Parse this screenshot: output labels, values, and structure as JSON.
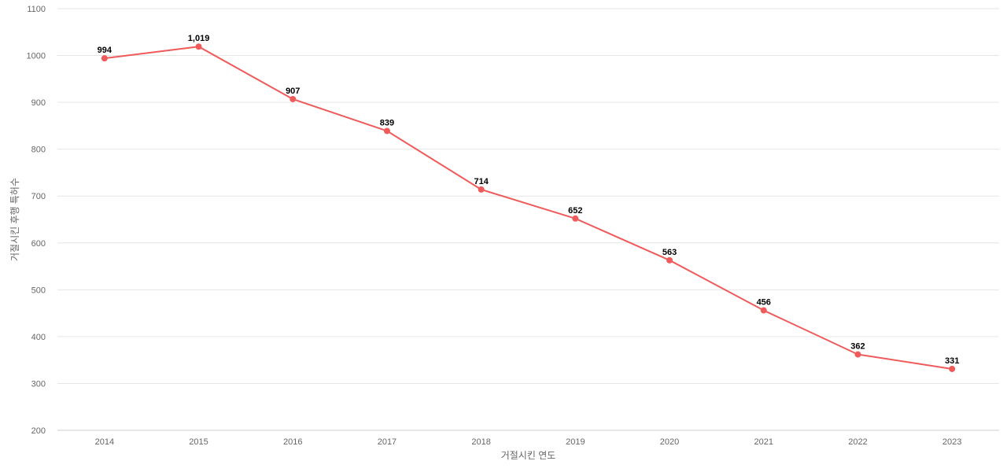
{
  "chart_data": {
    "type": "line",
    "x": [
      "2014",
      "2015",
      "2016",
      "2017",
      "2018",
      "2019",
      "2020",
      "2021",
      "2022",
      "2023"
    ],
    "series": [
      {
        "values": [
          994,
          1019,
          907,
          839,
          714,
          652,
          563,
          456,
          362,
          331
        ],
        "data_labels": [
          "994",
          "1,019",
          "907",
          "839",
          "714",
          "652",
          "563",
          "456",
          "362",
          "331"
        ]
      }
    ],
    "title": "",
    "xlabel": "거절시킨 연도",
    "ylabel": "거절시킨 후행 특허수",
    "ylim": [
      200,
      1100
    ],
    "yticks": [
      "200",
      "300",
      "400",
      "500",
      "600",
      "700",
      "800",
      "900",
      "1000",
      "1100"
    ],
    "grid": true,
    "legend": "none",
    "colors": {
      "series": "#ef5b5b",
      "grid": "#e6e6e6",
      "axis_text": "#666666",
      "label_text": "#000000"
    }
  }
}
